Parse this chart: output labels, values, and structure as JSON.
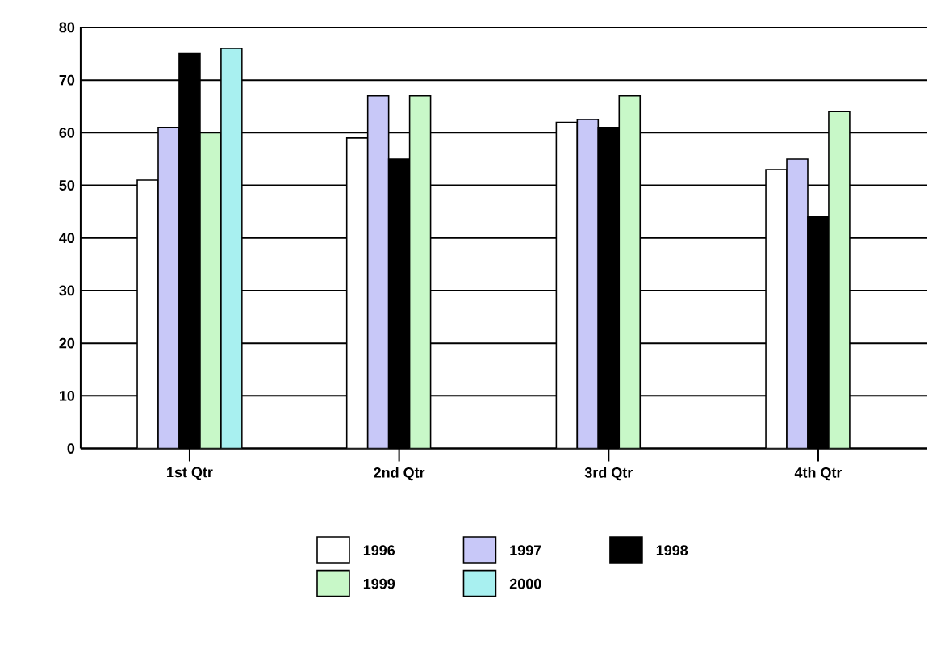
{
  "chart_data": {
    "type": "bar",
    "categories": [
      "1st Qtr",
      "2nd Qtr",
      "3rd Qtr",
      "4th Qtr"
    ],
    "series": [
      {
        "name": "1996",
        "color": "#ffffff",
        "values": [
          51,
          59,
          62,
          53
        ]
      },
      {
        "name": "1997",
        "color": "#c8c8f8",
        "values": [
          61,
          67,
          62.5,
          55
        ]
      },
      {
        "name": "1998",
        "color": "#000000",
        "values": [
          75,
          55,
          61,
          44
        ]
      },
      {
        "name": "1999",
        "color": "#c8f8c8",
        "values": [
          60,
          67,
          67,
          64
        ]
      },
      {
        "name": "2000",
        "color": "#a8f0f0",
        "values": [
          76,
          null,
          null,
          null
        ]
      }
    ],
    "ylim": [
      0,
      80
    ],
    "yticks": [
      0,
      10,
      20,
      30,
      40,
      50,
      60,
      70,
      80
    ],
    "grid": "y",
    "legend": "bottom"
  }
}
